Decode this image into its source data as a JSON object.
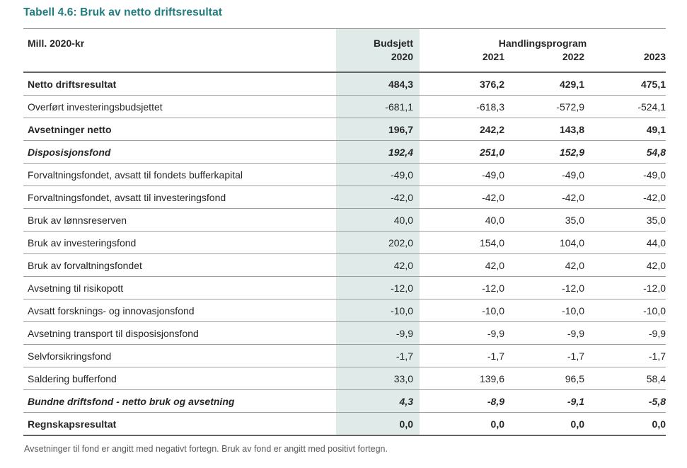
{
  "page": {
    "title": "Tabell 4.6: Bruk av netto driftsresultat",
    "footnote": "Avsetninger til fond er angitt med negativt fortegn. Bruk av fond er angitt med positivt fortegn."
  },
  "colors": {
    "title_teal": "#217c7e",
    "highlight_column_bg": "#dfeae9",
    "body_text": "#262626",
    "footnote_text": "#595959",
    "border_light": "#9e9e9e",
    "border_dark": "#636363"
  },
  "table": {
    "unit_label": "Mill. 2020-kr",
    "col_group_1": "Budsjett",
    "col_group_2": "Handlingsprogram",
    "years": [
      "2020",
      "2021",
      "2022",
      "2023"
    ],
    "rows": [
      {
        "label": "Netto driftsresultat",
        "style": "bold",
        "values": [
          "484,3",
          "376,2",
          "429,1",
          "475,1"
        ]
      },
      {
        "label": "Overført investeringsbudsjettet",
        "style": "normal",
        "values": [
          "-681,1",
          "-618,3",
          "-572,9",
          "-524,1"
        ]
      },
      {
        "label": "Avsetninger netto",
        "style": "bold",
        "values": [
          "196,7",
          "242,2",
          "143,8",
          "49,1"
        ]
      },
      {
        "label": "Disposisjonsfond",
        "style": "bold-italic",
        "values": [
          "192,4",
          "251,0",
          "152,9",
          "54,8"
        ]
      },
      {
        "label": "Forvaltningsfondet, avsatt til fondets bufferkapital",
        "style": "normal",
        "values": [
          "-49,0",
          "-49,0",
          "-49,0",
          "-49,0"
        ]
      },
      {
        "label": "Forvaltningsfondet, avsatt til investeringsfond",
        "style": "normal",
        "values": [
          "-42,0",
          "-42,0",
          "-42,0",
          "-42,0"
        ]
      },
      {
        "label": "Bruk av lønnsreserven",
        "style": "normal",
        "values": [
          "40,0",
          "40,0",
          "35,0",
          "35,0"
        ]
      },
      {
        "label": "Bruk av investeringsfond",
        "style": "normal",
        "values": [
          "202,0",
          "154,0",
          "104,0",
          "44,0"
        ]
      },
      {
        "label": "Bruk av forvaltningsfondet",
        "style": "normal",
        "values": [
          "42,0",
          "42,0",
          "42,0",
          "42,0"
        ]
      },
      {
        "label": "Avsetning til risikopott",
        "style": "normal",
        "values": [
          "-12,0",
          "-12,0",
          "-12,0",
          "-12,0"
        ]
      },
      {
        "label": "Avsatt forsknings- og innovasjonsfond",
        "style": "normal",
        "values": [
          "-10,0",
          "-10,0",
          "-10,0",
          "-10,0"
        ]
      },
      {
        "label": "Avsetning transport til disposisjonsfond",
        "style": "normal",
        "values": [
          "-9,9",
          "-9,9",
          "-9,9",
          "-9,9"
        ]
      },
      {
        "label": "Selvforsikringsfond",
        "style": "normal",
        "values": [
          "-1,7",
          "-1,7",
          "-1,7",
          "-1,7"
        ]
      },
      {
        "label": "Saldering bufferfond",
        "style": "normal",
        "values": [
          "33,0",
          "139,6",
          "96,5",
          "58,4"
        ]
      },
      {
        "label": "Bundne driftsfond - netto bruk og avsetning",
        "style": "bold-italic",
        "values": [
          "4,3",
          "-8,9",
          "-9,1",
          "-5,8"
        ]
      },
      {
        "label": "Regnskapsresultat",
        "style": "bold",
        "values": [
          "0,0",
          "0,0",
          "0,0",
          "0,0"
        ]
      }
    ]
  }
}
